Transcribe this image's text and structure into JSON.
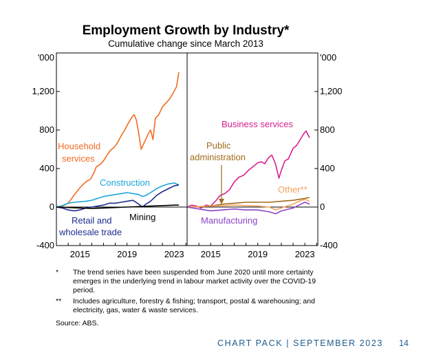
{
  "title": "Employment Growth by Industry*",
  "subtitle": "Cumulative change since March 2013",
  "chart_data": {
    "type": "line",
    "panels": [
      {
        "y_unit_label": "'000",
        "ylim": [
          -400,
          1600
        ],
        "yticks": [
          -400,
          0,
          400,
          800,
          1200
        ],
        "ytick_labels": [
          "-400",
          "0",
          "400",
          "800",
          "1,200"
        ],
        "xlim": [
          2013,
          2024.1
        ],
        "xticks": [
          2015,
          2019,
          2023
        ],
        "xtick_labels": [
          "2015",
          "2019",
          "2023"
        ],
        "series": [
          {
            "name": "Household services",
            "color": "#f26b21",
            "x": [
              2013.0,
              2013.5,
              2014.0,
              2014.3,
              2014.6,
              2015.0,
              2015.3,
              2015.6,
              2015.9,
              2016.2,
              2016.4,
              2016.7,
              2017.0,
              2017.3,
              2017.6,
              2017.9,
              2018.2,
              2018.5,
              2018.8,
              2019.1,
              2019.4,
              2019.6,
              2019.8,
              2020.0,
              2020.2,
              2020.5,
              2020.8,
              2021.0,
              2021.2,
              2021.4,
              2021.7,
              2022.0,
              2022.3,
              2022.6,
              2022.9,
              2023.2,
              2023.4
            ],
            "values": [
              0,
              10,
              40,
              90,
              140,
              200,
              240,
              270,
              290,
              360,
              420,
              440,
              480,
              540,
              590,
              620,
              670,
              740,
              800,
              870,
              930,
              960,
              900,
              760,
              600,
              680,
              760,
              800,
              700,
              920,
              960,
              1040,
              1080,
              1120,
              1180,
              1250,
              1400
            ]
          },
          {
            "name": "Construction",
            "color": "#1aa6d9",
            "x": [
              2013.0,
              2013.5,
              2014.0,
              2014.5,
              2015.0,
              2015.5,
              2016.0,
              2016.5,
              2017.0,
              2017.5,
              2018.0,
              2018.5,
              2019.0,
              2019.5,
              2020.0,
              2020.3,
              2020.6,
              2021.0,
              2021.5,
              2022.0,
              2022.5,
              2023.0,
              2023.4
            ],
            "values": [
              0,
              15,
              40,
              50,
              55,
              60,
              70,
              90,
              110,
              120,
              130,
              140,
              150,
              140,
              130,
              110,
              120,
              150,
              190,
              220,
              240,
              250,
              230
            ]
          },
          {
            "name": "Retail and wholesale trade",
            "color": "#1e2b8e",
            "x": [
              2013.0,
              2013.5,
              2014.0,
              2014.5,
              2015.0,
              2015.5,
              2016.0,
              2016.5,
              2017.0,
              2017.5,
              2018.0,
              2018.5,
              2019.0,
              2019.5,
              2020.0,
              2020.3,
              2020.6,
              2021.0,
              2021.5,
              2022.0,
              2022.5,
              2023.0,
              2023.4
            ],
            "values": [
              0,
              -10,
              -30,
              -40,
              -30,
              -10,
              0,
              10,
              20,
              40,
              40,
              50,
              60,
              70,
              30,
              0,
              30,
              60,
              120,
              160,
              190,
              220,
              230
            ]
          },
          {
            "name": "Mining",
            "color": "#000000",
            "x": [
              2013.0,
              2014.0,
              2015.0,
              2016.0,
              2017.0,
              2018.0,
              2019.0,
              2020.0,
              2021.0,
              2022.0,
              2023.0,
              2023.4
            ],
            "values": [
              0,
              -5,
              -10,
              -15,
              -10,
              -5,
              0,
              5,
              10,
              15,
              20,
              20
            ]
          }
        ]
      },
      {
        "y_unit_label": "'000",
        "ylim": [
          -400,
          1600
        ],
        "yticks": [
          -400,
          0,
          400,
          800,
          1200
        ],
        "ytick_labels": [
          "-400",
          "0",
          "400",
          "800",
          "1,200"
        ],
        "xlim": [
          2013,
          2024.1
        ],
        "xticks": [
          2015,
          2019,
          2023
        ],
        "xtick_labels": [
          "2015",
          "2019",
          "2023"
        ],
        "series": [
          {
            "name": "Business services",
            "color": "#d6208e",
            "x": [
              2013.0,
              2013.4,
              2013.8,
              2014.2,
              2014.6,
              2015.0,
              2015.4,
              2015.8,
              2016.2,
              2016.6,
              2017.0,
              2017.4,
              2017.8,
              2018.2,
              2018.6,
              2019.0,
              2019.3,
              2019.6,
              2019.9,
              2020.2,
              2020.5,
              2020.8,
              2021.0,
              2021.3,
              2021.6,
              2022.0,
              2022.3,
              2022.6,
              2022.9,
              2023.1,
              2023.4
            ],
            "values": [
              0,
              20,
              10,
              -10,
              20,
              10,
              60,
              120,
              140,
              180,
              260,
              310,
              330,
              380,
              420,
              460,
              470,
              450,
              510,
              540,
              450,
              300,
              380,
              480,
              500,
              610,
              640,
              700,
              760,
              790,
              720
            ]
          },
          {
            "name": "Public administration",
            "color": "#a06a1b",
            "x": [
              2013.0,
              2014.0,
              2015.0,
              2016.0,
              2017.0,
              2018.0,
              2019.0,
              2020.0,
              2021.0,
              2022.0,
              2022.5,
              2023.0,
              2023.4
            ],
            "values": [
              0,
              5,
              10,
              30,
              40,
              50,
              50,
              50,
              60,
              70,
              80,
              90,
              100
            ]
          },
          {
            "name": "Other**",
            "color": "#f4a35a",
            "x": [
              2013.0,
              2014.0,
              2015.0,
              2016.0,
              2017.0,
              2018.0,
              2019.0,
              2020.0,
              2020.5,
              2021.0,
              2022.0,
              2022.5,
              2023.0,
              2023.4
            ],
            "values": [
              0,
              5,
              10,
              15,
              20,
              15,
              10,
              0,
              -30,
              -10,
              30,
              60,
              80,
              60
            ]
          },
          {
            "name": "Manufacturing",
            "color": "#8a44c7",
            "x": [
              2013.0,
              2014.0,
              2015.0,
              2016.0,
              2017.0,
              2018.0,
              2019.0,
              2020.0,
              2020.5,
              2021.0,
              2022.0,
              2022.5,
              2023.0,
              2023.4
            ],
            "values": [
              0,
              -20,
              -40,
              -30,
              -20,
              -30,
              -30,
              -50,
              -70,
              -40,
              -10,
              20,
              50,
              30
            ]
          }
        ]
      }
    ],
    "legend_placement": "inline labels"
  },
  "notes": [
    {
      "mark": "*",
      "text": "The trend series have been suspended from June 2020 until more certainty emerges in the underlying trend in labour market activity over the COVID-19 period."
    },
    {
      "mark": "**",
      "text": "Includes agriculture, forestry & fishing; transport, postal & warehousing; and electricity, gas, water & waste services."
    }
  ],
  "source": "Source:   ABS.",
  "footer": "CHART PACK | SEPTEMBER 2023",
  "page_number": "14"
}
